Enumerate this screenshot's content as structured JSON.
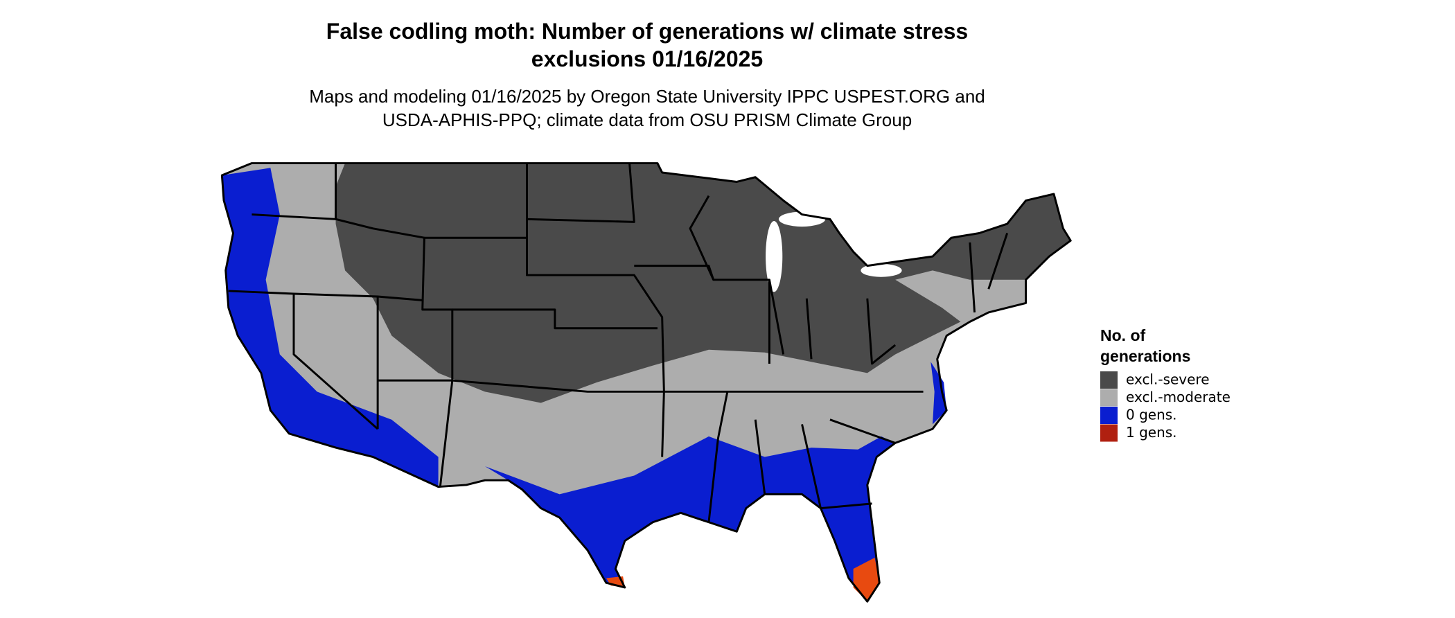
{
  "title": [
    "False codling moth: Number of generations w/ climate stress",
    "exclusions 01/16/2025"
  ],
  "subtitle": [
    "Maps and modeling 01/16/2025 by Oregon State University IPPC USPEST.ORG and",
    "USDA-APHIS-PPQ; climate data from OSU PRISM Climate Group"
  ],
  "legend": {
    "title": [
      "No. of",
      "generations"
    ],
    "items": [
      {
        "label": "excl.-severe",
        "color": "#4a4a4a"
      },
      {
        "label": "excl.-moderate",
        "color": "#adadad"
      },
      {
        "label": "0 gens.",
        "color": "#0a1ed0"
      },
      {
        "label": "1 gens.",
        "color": "#b02010"
      }
    ]
  }
}
